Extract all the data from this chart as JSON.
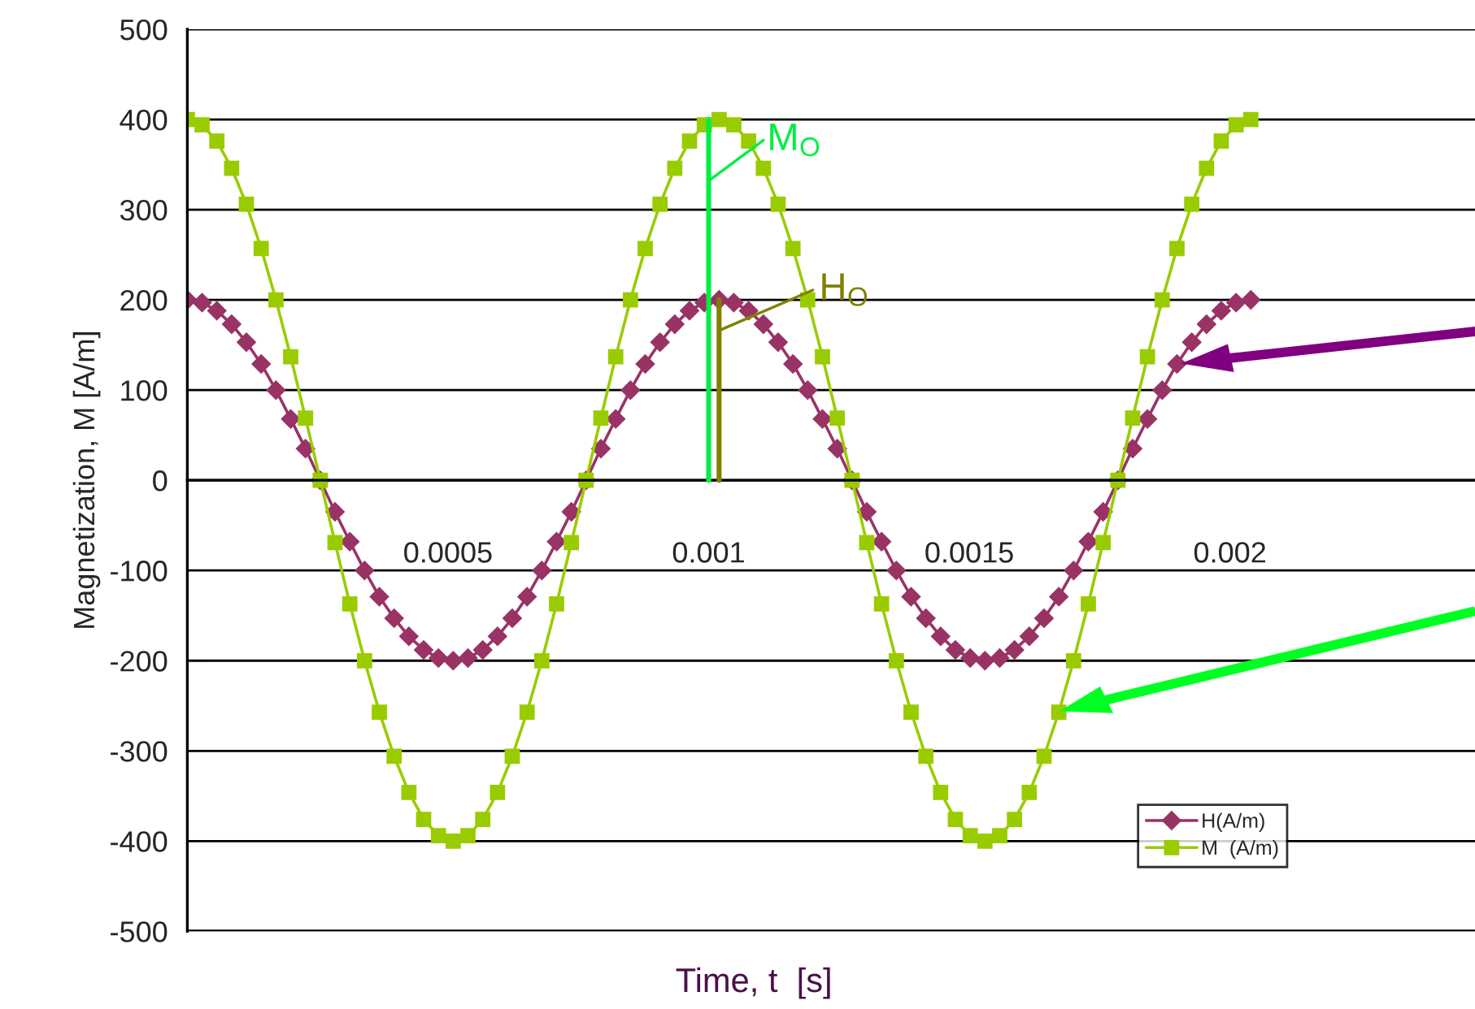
{
  "chart_data": {
    "type": "line",
    "xlabel": "Time, t  [s]",
    "ylabel": "Magnetization, M [A/m]",
    "x": [
      0,
      2.83e-05,
      5.67e-05,
      8.5e-05,
      0.0001133,
      0.0001417,
      0.00017,
      0.0001983,
      0.0002267,
      0.000255,
      0.0002833,
      0.0003117,
      0.00034,
      0.0003683,
      0.0003967,
      0.000425,
      0.0004533,
      0.0004817,
      0.00051,
      0.0005383,
      0.0005667,
      0.000595,
      0.0006233,
      0.0006517,
      0.00068,
      0.0007083,
      0.0007367,
      0.000765,
      0.0007933,
      0.0008217,
      0.00085,
      0.0008783,
      0.0009067,
      0.000935,
      0.0009633,
      0.0009917,
      0.00102,
      0.0010483,
      0.0010767,
      0.001105,
      0.0011333,
      0.0011617,
      0.00119,
      0.0012183,
      0.0012467,
      0.001275,
      0.0013033,
      0.0013317,
      0.00136,
      0.0013883,
      0.0014167,
      0.001445,
      0.0014733,
      0.0015017,
      0.00153,
      0.0015583,
      0.0015867,
      0.001615,
      0.0016433,
      0.0016717,
      0.0017,
      0.0017283,
      0.0017567,
      0.001785,
      0.0018133,
      0.0018417,
      0.00187,
      0.0018983,
      0.0019267,
      0.001955,
      0.0019833,
      0.0020117,
      0.00204
    ],
    "series": [
      {
        "name": "H(A/m)",
        "color": "#993366",
        "marker": "diamond",
        "values": [
          200,
          197,
          188,
          173,
          153,
          129,
          100,
          68,
          35,
          0,
          -35,
          -68,
          -100,
          -129,
          -153,
          -173,
          -188,
          -197,
          -200,
          -197,
          -188,
          -173,
          -153,
          -129,
          -100,
          -68,
          -35,
          0,
          35,
          68,
          100,
          129,
          153,
          173,
          188,
          197,
          200,
          197,
          188,
          173,
          153,
          129,
          100,
          68,
          35,
          0,
          -35,
          -68,
          -100,
          -129,
          -153,
          -173,
          -188,
          -197,
          -200,
          -197,
          -188,
          -173,
          -153,
          -129,
          -100,
          -68,
          -35,
          0,
          35,
          68,
          100,
          129,
          153,
          173,
          188,
          197,
          200
        ]
      },
      {
        "name": "M  (A/m)",
        "color": "#99cc00",
        "marker": "square",
        "values": [
          400,
          394,
          376,
          346,
          306,
          257,
          200,
          137,
          69,
          0,
          -69,
          -137,
          -200,
          -257,
          -306,
          -346,
          -376,
          -394,
          -400,
          -394,
          -376,
          -346,
          -306,
          -257,
          -200,
          -137,
          -69,
          0,
          69,
          137,
          200,
          257,
          306,
          346,
          376,
          394,
          400,
          394,
          376,
          346,
          306,
          257,
          200,
          137,
          69,
          0,
          -69,
          -137,
          -200,
          -257,
          -306,
          -346,
          -376,
          -394,
          -400,
          -394,
          -376,
          -346,
          -306,
          -257,
          -200,
          -137,
          -69,
          0,
          69,
          137,
          200,
          257,
          306,
          346,
          376,
          394,
          400
        ]
      }
    ],
    "xlim": [
      0,
      0.00247
    ],
    "xticks": [
      0.0005,
      0.001,
      0.0015,
      0.002
    ],
    "ylim": [
      -500,
      500
    ],
    "yticks": [
      -500,
      -400,
      -300,
      -200,
      -100,
      0,
      100,
      200,
      300,
      400,
      500
    ],
    "grid": "y",
    "legend": "bottom right",
    "line_style": "solid",
    "annotations": [
      {
        "text": "M$_{O}$",
        "x": 0.001,
        "y": 400
      },
      {
        "text": "H$_{O}$",
        "x": 0.00102,
        "y": 200
      }
    ]
  }
}
